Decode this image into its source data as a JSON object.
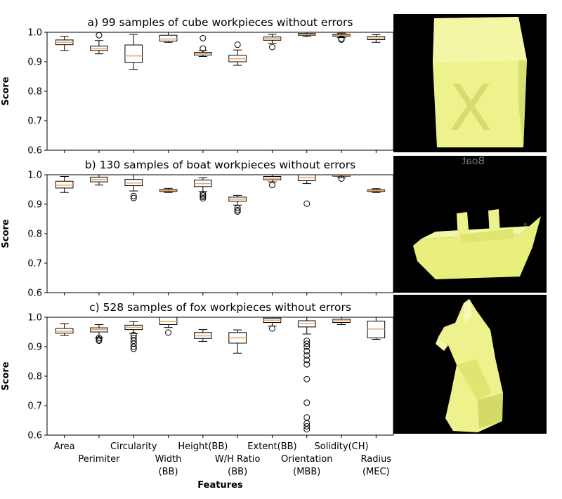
{
  "chart_data": [
    {
      "type": "box",
      "title": "a) 99 samples of cube workpieces without errors",
      "ylabel": "Score",
      "ylim": [
        0.6,
        1.0
      ],
      "yticks": [
        0.6,
        0.7,
        0.8,
        0.9,
        1.0
      ],
      "categories": [
        "Area",
        "Perimiter",
        "Circularity",
        "Width (BB)",
        "Height(BB)",
        "W/H Ratio (BB)",
        "Extent(BB)",
        "Orientation (MBB)",
        "Solidity(CH)",
        "Radius (MEC)"
      ],
      "boxes": [
        {
          "whislo": 0.938,
          "q1": 0.958,
          "med": 0.966,
          "q3": 0.974,
          "whishi": 0.986,
          "fliers": []
        },
        {
          "whislo": 0.927,
          "q1": 0.938,
          "med": 0.944,
          "q3": 0.953,
          "whishi": 0.972,
          "fliers": [
            0.99
          ]
        },
        {
          "whislo": 0.873,
          "q1": 0.897,
          "med": 0.92,
          "q3": 0.957,
          "whishi": 0.993,
          "fliers": []
        },
        {
          "whislo": 0.966,
          "q1": 0.97,
          "med": 0.977,
          "q3": 0.99,
          "whishi": 1.0,
          "fliers": []
        },
        {
          "whislo": 0.918,
          "q1": 0.923,
          "med": 0.928,
          "q3": 0.932,
          "whishi": 0.938,
          "fliers": [
            0.945,
            0.98
          ]
        },
        {
          "whislo": 0.888,
          "q1": 0.9,
          "med": 0.91,
          "q3": 0.922,
          "whishi": 0.94,
          "fliers": [
            0.958
          ]
        },
        {
          "whislo": 0.963,
          "q1": 0.973,
          "med": 0.978,
          "q3": 0.984,
          "whishi": 0.993,
          "fliers": [
            0.95
          ]
        },
        {
          "whislo": 0.985,
          "q1": 0.99,
          "med": 0.993,
          "q3": 0.996,
          "whishi": 1.0,
          "fliers": []
        },
        {
          "whislo": 0.982,
          "q1": 0.987,
          "med": 0.99,
          "q3": 0.993,
          "whishi": 0.997,
          "fliers": [
            0.975,
            0.978
          ]
        },
        {
          "whislo": 0.966,
          "q1": 0.975,
          "med": 0.98,
          "q3": 0.985,
          "whishi": 0.992,
          "fliers": []
        }
      ]
    },
    {
      "type": "box",
      "title": "b) 130 samples of boat workpieces without errors",
      "ylabel": "Score",
      "ylim": [
        0.6,
        1.0
      ],
      "yticks": [
        0.6,
        0.7,
        0.8,
        0.9,
        1.0
      ],
      "categories": [
        "Area",
        "Perimiter",
        "Circularity",
        "Width (BB)",
        "Height(BB)",
        "W/H Ratio (BB)",
        "Extent(BB)",
        "Orientation (MBB)",
        "Solidity(CH)",
        "Radius (MEC)"
      ],
      "boxes": [
        {
          "whislo": 0.94,
          "q1": 0.955,
          "med": 0.965,
          "q3": 0.978,
          "whishi": 0.994,
          "fliers": []
        },
        {
          "whislo": 0.965,
          "q1": 0.976,
          "med": 0.984,
          "q3": 0.992,
          "whishi": 1.0,
          "fliers": []
        },
        {
          "whislo": 0.945,
          "q1": 0.963,
          "med": 0.972,
          "q3": 0.984,
          "whishi": 1.0,
          "fliers": [
            0.921,
            0.928
          ]
        },
        {
          "whislo": 0.94,
          "q1": 0.943,
          "med": 0.946,
          "q3": 0.95,
          "whishi": 0.954,
          "fliers": []
        },
        {
          "whislo": 0.943,
          "q1": 0.96,
          "med": 0.97,
          "q3": 0.982,
          "whishi": 0.99,
          "fliers": [
            0.92,
            0.925,
            0.93,
            0.935
          ]
        },
        {
          "whislo": 0.897,
          "q1": 0.91,
          "med": 0.917,
          "q3": 0.924,
          "whishi": 0.93,
          "fliers": [
            0.875,
            0.88,
            0.887
          ]
        },
        {
          "whislo": 0.976,
          "q1": 0.983,
          "med": 0.988,
          "q3": 0.994,
          "whishi": 1.0,
          "fliers": [
            0.965
          ]
        },
        {
          "whislo": 0.97,
          "q1": 0.98,
          "med": 0.99,
          "q3": 1.0,
          "whishi": 1.0,
          "fliers": [
            0.902
          ]
        },
        {
          "whislo": 0.99,
          "q1": 0.995,
          "med": 0.998,
          "q3": 1.0,
          "whishi": 1.0,
          "fliers": [
            0.987
          ]
        },
        {
          "whislo": 0.94,
          "q1": 0.943,
          "med": 0.946,
          "q3": 0.949,
          "whishi": 0.953,
          "fliers": []
        }
      ]
    },
    {
      "type": "box",
      "title": "c) 528 samples of fox workpieces without errors",
      "ylabel": "Score",
      "xlabel": "Features",
      "ylim": [
        0.6,
        1.0
      ],
      "yticks": [
        0.6,
        0.7,
        0.8,
        0.9,
        1.0
      ],
      "categories": [
        "Area",
        "Perimiter",
        "Circularity",
        "Width (BB)",
        "Height(BB)",
        "W/H Ratio (BB)",
        "Extent(BB)",
        "Orientation (MBB)",
        "Solidity(CH)",
        "Radius (MEC)"
      ],
      "boxes": [
        {
          "whislo": 0.938,
          "q1": 0.946,
          "med": 0.953,
          "q3": 0.962,
          "whishi": 0.978,
          "fliers": []
        },
        {
          "whislo": 0.93,
          "q1": 0.95,
          "med": 0.958,
          "q3": 0.964,
          "whishi": 0.975,
          "fliers": [
            0.92,
            0.925,
            0.93
          ]
        },
        {
          "whislo": 0.945,
          "q1": 0.958,
          "med": 0.966,
          "q3": 0.973,
          "whishi": 0.985,
          "fliers": [
            0.893,
            0.9,
            0.91,
            0.92,
            0.93,
            0.94
          ]
        },
        {
          "whislo": 0.965,
          "q1": 0.975,
          "med": 0.985,
          "q3": 1.0,
          "whishi": 1.0,
          "fliers": [
            0.948
          ]
        },
        {
          "whislo": 0.918,
          "q1": 0.928,
          "med": 0.937,
          "q3": 0.948,
          "whishi": 0.958,
          "fliers": []
        },
        {
          "whislo": 0.878,
          "q1": 0.912,
          "med": 0.93,
          "q3": 0.948,
          "whishi": 0.957,
          "fliers": []
        },
        {
          "whislo": 0.97,
          "q1": 0.982,
          "med": 0.99,
          "q3": 0.997,
          "whishi": 1.0,
          "fliers": [
            0.962
          ]
        },
        {
          "whislo": 0.943,
          "q1": 0.967,
          "med": 0.978,
          "q3": 0.988,
          "whishi": 1.0,
          "fliers": [
            0.62,
            0.63,
            0.64,
            0.66,
            0.71,
            0.79,
            0.84,
            0.855,
            0.87,
            0.885,
            0.9,
            0.91,
            0.92
          ]
        },
        {
          "whislo": 0.975,
          "q1": 0.982,
          "med": 0.988,
          "q3": 0.993,
          "whishi": 1.0,
          "fliers": []
        },
        {
          "whislo": 0.925,
          "q1": 0.93,
          "med": 0.96,
          "q3": 0.987,
          "whishi": 1.0,
          "fliers": []
        }
      ]
    }
  ],
  "xtick_labels": [
    {
      "lines": [
        "Area"
      ]
    },
    {
      "lines": [
        "Perimiter"
      ]
    },
    {
      "lines": [
        "Circularity"
      ]
    },
    {
      "lines": [
        "Width",
        "(BB)"
      ]
    },
    {
      "lines": [
        "Height(BB)"
      ]
    },
    {
      "lines": [
        "W/H Ratio",
        "(BB)"
      ]
    },
    {
      "lines": [
        "Extent(BB)"
      ]
    },
    {
      "lines": [
        "Orientation",
        "(MBB)"
      ]
    },
    {
      "lines": [
        "Solidity(CH)"
      ]
    },
    {
      "lines": [
        "Radius",
        "(MEC)"
      ]
    }
  ],
  "photos": {
    "cube_marking": "X",
    "boat_mirror_text": "Boat"
  },
  "colors": {
    "median": "#f5a35b",
    "box": "#000000",
    "workpiece": "#eef28c",
    "photo_background": "#000000"
  }
}
